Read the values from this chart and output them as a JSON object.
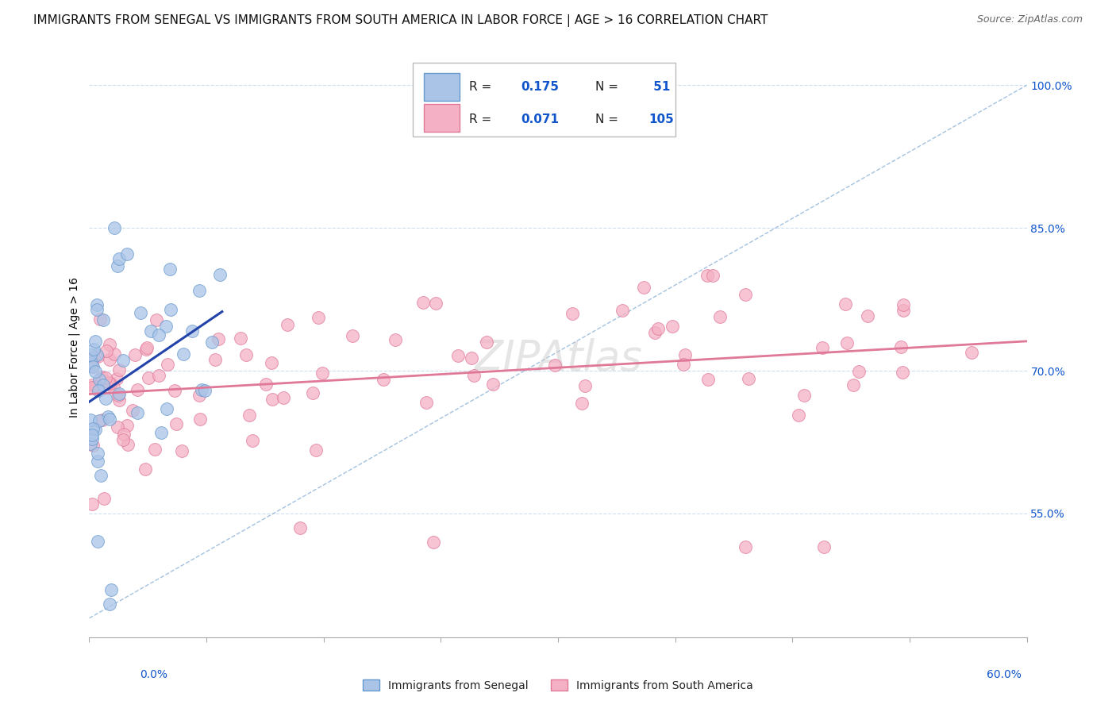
{
  "title": "IMMIGRANTS FROM SENEGAL VS IMMIGRANTS FROM SOUTH AMERICA IN LABOR FORCE | AGE > 16 CORRELATION CHART",
  "source": "Source: ZipAtlas.com",
  "ylabel": "In Labor Force | Age > 16",
  "right_ytick_labels": [
    "100.0%",
    "85.0%",
    "70.0%",
    "55.0%"
  ],
  "right_ytick_values": [
    1.0,
    0.85,
    0.7,
    0.55
  ],
  "xmin": 0.0,
  "xmax": 0.6,
  "ymin": 0.42,
  "ymax": 1.03,
  "senegal_color": "#aac4e8",
  "senegal_edge": "#6699cc",
  "south_america_color": "#f4b0c4",
  "south_america_edge": "#e07898",
  "blue_line_color": "#2244aa",
  "pink_line_color": "#e07898",
  "diag_line_color": "#99bbdd",
  "grid_color": "#ccddee",
  "background_color": "#ffffff",
  "legend_text_color": "#222222",
  "legend_value_color": "#1155cc",
  "title_fontsize": 11,
  "source_fontsize": 9,
  "axis_label_fontsize": 10,
  "tick_label_fontsize": 10,
  "legend_label1": "R = ",
  "legend_val1_r": "0.175",
  "legend_val1_n": "51",
  "legend_label2": "R = ",
  "legend_val2_r": "0.071",
  "legend_val2_n": "105"
}
